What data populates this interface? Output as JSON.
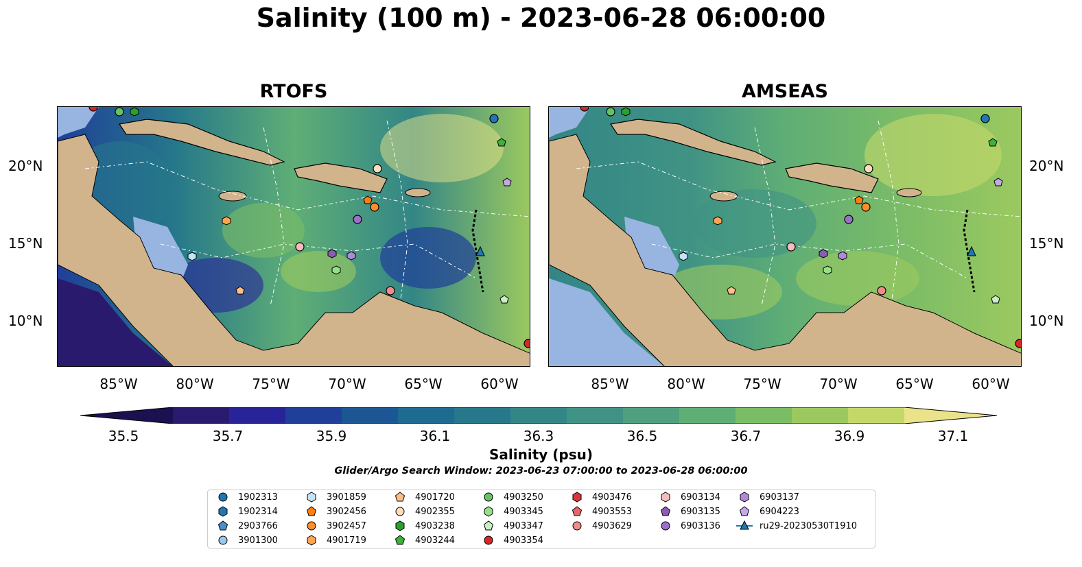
{
  "title": "Salinity (100 m) - 2023-06-28 06:00:00",
  "panels": [
    {
      "title": "RTOFS"
    },
    {
      "title": "AMSEAS"
    }
  ],
  "lat_labels": [
    "20°N",
    "15°N",
    "10°N"
  ],
  "lon_labels": [
    "85°W",
    "80°W",
    "75°W",
    "70°W",
    "65°W",
    "60°W"
  ],
  "colorbar": {
    "tick_labels": [
      "35.5",
      "35.7",
      "35.9",
      "36.1",
      "36.3",
      "36.5",
      "36.7",
      "36.9",
      "37.1"
    ],
    "label": "Salinity (psu)",
    "colors": [
      "#2a1a6e",
      "#29239a",
      "#1f3f99",
      "#1d5793",
      "#1e6b8f",
      "#26788a",
      "#338686",
      "#409384",
      "#4fa07e",
      "#5fae76",
      "#7bbc67",
      "#9cc95f",
      "#c4d86a",
      "#eae38a"
    ]
  },
  "search_window": "Glider/Argo Search Window: 2023-06-23 07:00:00 to 2023-06-28 06:00:00",
  "legend": {
    "columns": [
      [
        {
          "label": "1902313",
          "shape": "circle",
          "color": "#1f77b4"
        },
        {
          "label": "1902314",
          "shape": "hexagon",
          "color": "#1f77b4"
        },
        {
          "label": "2903766",
          "shape": "pentagon",
          "color": "#4a8fc8"
        },
        {
          "label": "3901300",
          "shape": "circle",
          "color": "#9ec8ea"
        }
      ],
      [
        {
          "label": "3901859",
          "shape": "hexagon",
          "color": "#c6e2f7"
        },
        {
          "label": "3902456",
          "shape": "pentagon",
          "color": "#ff7f0e"
        },
        {
          "label": "3902457",
          "shape": "circle",
          "color": "#ff8c2a"
        },
        {
          "label": "4901719",
          "shape": "hexagon",
          "color": "#ffa552"
        }
      ],
      [
        {
          "label": "4901720",
          "shape": "pentagon",
          "color": "#ffbe86"
        },
        {
          "label": "4902355",
          "shape": "circle",
          "color": "#ffdcbc"
        },
        {
          "label": "4903238",
          "shape": "hexagon",
          "color": "#2ca02c"
        },
        {
          "label": "4903244",
          "shape": "pentagon",
          "color": "#3bb33b"
        }
      ],
      [
        {
          "label": "4903250",
          "shape": "circle",
          "color": "#66c266"
        },
        {
          "label": "4903345",
          "shape": "hexagon",
          "color": "#98df8a"
        },
        {
          "label": "4903347",
          "shape": "pentagon",
          "color": "#c8f0c0"
        },
        {
          "label": "4903354",
          "shape": "circle",
          "color": "#d62728"
        }
      ],
      [
        {
          "label": "4903476",
          "shape": "hexagon",
          "color": "#d9363a"
        },
        {
          "label": "4903553",
          "shape": "pentagon",
          "color": "#e8676a"
        },
        {
          "label": "4903629",
          "shape": "circle",
          "color": "#f08c8c"
        }
      ],
      [
        {
          "label": "6903134",
          "shape": "hexagon",
          "color": "#f7bdbd"
        },
        {
          "label": "6903135",
          "shape": "pentagon",
          "color": "#8c5cb5"
        },
        {
          "label": "6903136",
          "shape": "circle",
          "color": "#9b70c8"
        }
      ],
      [
        {
          "label": "6903137",
          "shape": "hexagon",
          "color": "#b08ad8"
        },
        {
          "label": "6904223",
          "shape": "pentagon",
          "color": "#c5a8e8"
        },
        {
          "label": "ru29-20230530T1910",
          "shape": "triangle-line",
          "color": "#1f77b4"
        }
      ]
    ]
  }
}
